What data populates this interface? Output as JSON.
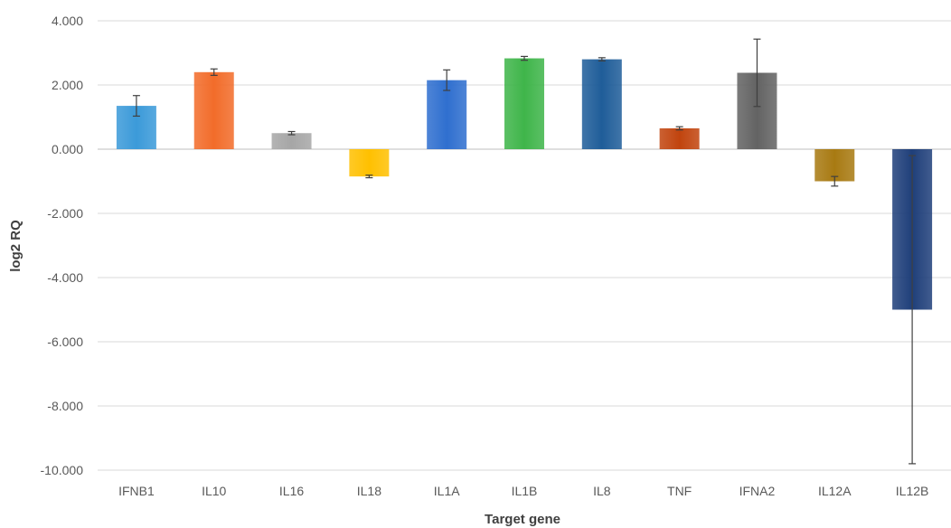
{
  "chart_data": {
    "type": "bar",
    "title": "",
    "xlabel": "Target gene",
    "ylabel": "log2 RQ",
    "ylim": [
      -10,
      4
    ],
    "yticks": [
      4,
      2,
      0,
      -2,
      -4,
      -6,
      -8,
      -10
    ],
    "ytick_labels": [
      "4.000",
      "2.000",
      "0.000",
      "-2.000",
      "-4.000",
      "-6.000",
      "-8.000",
      "-10.000"
    ],
    "grid": true,
    "legend": "none",
    "categories": [
      "IFNB1",
      "IL10",
      "IL16",
      "IL18",
      "IL1A",
      "IL1B",
      "IL8",
      "TNF",
      "IFNA2",
      "IL12A",
      "IL12B"
    ],
    "values": [
      1.35,
      2.4,
      0.5,
      -0.85,
      2.15,
      2.83,
      2.8,
      0.65,
      2.38,
      -1.0,
      -5.0
    ],
    "errors": [
      0.32,
      0.1,
      0.05,
      0.04,
      0.32,
      0.06,
      0.05,
      0.05,
      1.05,
      0.15,
      4.8
    ],
    "colors": [
      "#3b9ad9",
      "#f26c2a",
      "#a6a6a6",
      "#ffc000",
      "#2f6fcf",
      "#3fb54a",
      "#1f5d99",
      "#c1440e",
      "#636363",
      "#a87a12",
      "#1f3f7a"
    ]
  }
}
